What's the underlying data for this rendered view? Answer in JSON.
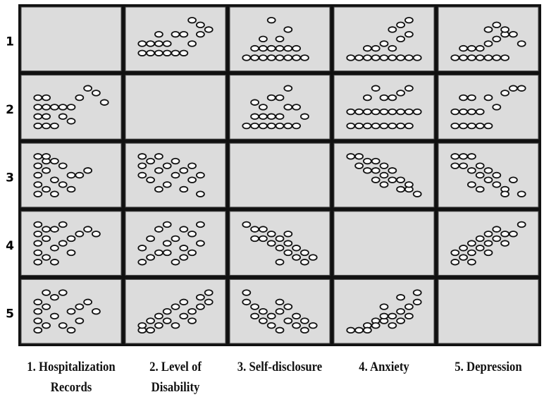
{
  "chart_data": {
    "type": "scatter_matrix",
    "variables": [
      "1. Hospitalization Records",
      "2. Level of Disability",
      "3. Self-disclosure",
      "4. Anxiety",
      "5. Depression"
    ],
    "row_labels": [
      "1",
      "2",
      "3",
      "4",
      "5"
    ],
    "xlim": [
      0,
      10
    ],
    "ylim": [
      0,
      10
    ],
    "panels": [
      [
        null,
        {
          "x": [
            1,
            2,
            3,
            4,
            5,
            1,
            2,
            3,
            4,
            6,
            7,
            8,
            5,
            6,
            3,
            8,
            9,
            7
          ],
          "y": [
            2,
            2,
            2,
            2,
            2,
            4,
            4,
            4,
            4,
            2,
            4,
            6,
            6,
            6,
            6,
            8,
            7,
            9
          ]
        },
        {
          "x": [
            1,
            2,
            3,
            4,
            5,
            6,
            7,
            8,
            2,
            3,
            4,
            5,
            6,
            7,
            3,
            5,
            6,
            4
          ],
          "y": [
            1,
            1,
            1,
            1,
            1,
            1,
            1,
            1,
            3,
            3,
            3,
            3,
            3,
            3,
            5,
            5,
            7,
            9
          ]
        },
        {
          "x": [
            1,
            2,
            3,
            4,
            5,
            6,
            7,
            8,
            9,
            3,
            4,
            5,
            6,
            7,
            8,
            6,
            7,
            8
          ],
          "y": [
            1,
            1,
            1,
            1,
            1,
            1,
            1,
            1,
            1,
            3,
            3,
            4,
            3,
            5,
            6,
            7,
            8,
            9
          ]
        },
        {
          "x": [
            1,
            2,
            3,
            4,
            5,
            6,
            7,
            2,
            3,
            4,
            5,
            6,
            7,
            8,
            5,
            6,
            7,
            9
          ],
          "y": [
            1,
            1,
            1,
            1,
            1,
            1,
            1,
            3,
            3,
            3,
            4,
            5,
            6,
            6,
            7,
            8,
            7,
            4
          ]
        }
      ],
      [
        {
          "x": [
            1,
            2,
            3,
            1,
            2,
            1,
            2,
            3,
            4,
            5,
            1,
            2,
            4,
            5,
            6,
            7,
            8,
            9
          ],
          "y": [
            1,
            1,
            1,
            3,
            3,
            5,
            5,
            5,
            5,
            5,
            7,
            7,
            3,
            2,
            7,
            9,
            8,
            6
          ]
        },
        null,
        {
          "x": [
            1,
            2,
            3,
            4,
            5,
            6,
            7,
            2,
            3,
            4,
            5,
            6,
            7,
            3,
            4,
            5,
            6,
            8,
            2
          ],
          "y": [
            1,
            1,
            1,
            1,
            1,
            1,
            1,
            3,
            3,
            3,
            3,
            5,
            5,
            5,
            7,
            7,
            9,
            3,
            6
          ]
        },
        {
          "x": [
            1,
            2,
            3,
            4,
            5,
            6,
            7,
            8,
            1,
            2,
            3,
            4,
            5,
            6,
            7,
            8,
            9,
            3,
            5,
            6,
            7,
            8,
            4
          ],
          "y": [
            1,
            1,
            1,
            1,
            1,
            1,
            1,
            1,
            4,
            4,
            4,
            4,
            4,
            4,
            4,
            4,
            4,
            7,
            7,
            7,
            8,
            9,
            9
          ]
        },
        {
          "x": [
            1,
            2,
            3,
            4,
            5,
            1,
            2,
            3,
            4,
            6,
            2,
            3,
            5,
            7,
            8,
            9
          ],
          "y": [
            1,
            1,
            1,
            1,
            1,
            4,
            4,
            4,
            4,
            5,
            7,
            7,
            7,
            8,
            9,
            9
          ]
        }
      ],
      [
        {
          "x": [
            1,
            1,
            1,
            1,
            1,
            2,
            2,
            2,
            3,
            3,
            4,
            4,
            5,
            6,
            7,
            2,
            3,
            5
          ],
          "y": [
            1,
            3,
            5,
            7,
            9,
            2,
            6,
            8,
            4,
            8,
            3,
            7,
            5,
            5,
            6,
            9,
            1,
            2
          ]
        },
        {
          "x": [
            1,
            1,
            1,
            2,
            2,
            3,
            3,
            4,
            4,
            5,
            5,
            6,
            6,
            7,
            7,
            8,
            8,
            3
          ],
          "y": [
            9,
            7,
            5,
            8,
            4,
            6,
            9,
            7,
            3,
            8,
            5,
            6,
            2,
            7,
            4,
            5,
            1,
            2
          ]
        },
        null,
        {
          "x": [
            1,
            2,
            3,
            4,
            5,
            2,
            3,
            4,
            5,
            6,
            7,
            4,
            5,
            6,
            7,
            8,
            9,
            8
          ],
          "y": [
            9,
            9,
            8,
            8,
            7,
            7,
            6,
            6,
            5,
            6,
            4,
            4,
            3,
            4,
            2,
            2,
            1,
            3
          ]
        },
        {
          "x": [
            1,
            2,
            3,
            1,
            2,
            3,
            4,
            5,
            4,
            5,
            6,
            3,
            4,
            6,
            7,
            8,
            9,
            7
          ],
          "y": [
            9,
            9,
            9,
            7,
            7,
            6,
            7,
            6,
            5,
            4,
            5,
            3,
            2,
            3,
            2,
            4,
            1,
            1
          ]
        }
      ],
      [
        {
          "x": [
            1,
            1,
            1,
            1,
            1,
            2,
            2,
            3,
            3,
            4,
            4,
            5,
            6,
            7,
            8,
            2,
            3,
            5
          ],
          "y": [
            1,
            3,
            5,
            7,
            9,
            2,
            6,
            4,
            8,
            5,
            9,
            6,
            7,
            8,
            7,
            8,
            1,
            3
          ]
        },
        {
          "x": [
            1,
            1,
            2,
            2,
            3,
            3,
            4,
            4,
            5,
            5,
            6,
            6,
            7,
            7,
            8,
            8,
            4,
            6
          ],
          "y": [
            1,
            4,
            2,
            6,
            3,
            8,
            5,
            9,
            1,
            6,
            4,
            8,
            3,
            7,
            5,
            9,
            3,
            2
          ]
        },
        {
          "x": [
            1,
            2,
            3,
            3,
            4,
            4,
            5,
            5,
            6,
            6,
            7,
            7,
            8,
            8,
            9,
            5,
            2,
            6
          ],
          "y": [
            9,
            8,
            8,
            6,
            7,
            5,
            6,
            4,
            5,
            3,
            4,
            2,
            3,
            1,
            2,
            1,
            6,
            7
          ]
        },
        null,
        {
          "x": [
            1,
            1,
            2,
            2,
            3,
            3,
            4,
            4,
            5,
            5,
            6,
            6,
            7,
            8,
            9,
            3,
            5,
            7
          ],
          "y": [
            1,
            3,
            2,
            4,
            3,
            5,
            4,
            6,
            5,
            7,
            6,
            8,
            7,
            7,
            9,
            1,
            3,
            5
          ]
        }
      ],
      [
        {
          "x": [
            1,
            1,
            1,
            1,
            2,
            2,
            3,
            3,
            4,
            5,
            6,
            7,
            8,
            2,
            4,
            6,
            5
          ],
          "y": [
            1,
            3,
            5,
            7,
            2,
            6,
            4,
            8,
            2,
            5,
            6,
            7,
            5,
            9,
            9,
            3,
            1
          ]
        },
        {
          "x": [
            1,
            1,
            2,
            2,
            3,
            3,
            4,
            4,
            5,
            5,
            6,
            6,
            7,
            7,
            8,
            8,
            9,
            9
          ],
          "y": [
            1,
            2,
            1,
            3,
            2,
            4,
            3,
            5,
            2,
            6,
            4,
            7,
            5,
            3,
            6,
            8,
            7,
            9
          ]
        },
        {
          "x": [
            1,
            1,
            2,
            3,
            3,
            4,
            4,
            5,
            5,
            6,
            6,
            7,
            7,
            8,
            8,
            9,
            2,
            5
          ],
          "y": [
            9,
            7,
            6,
            5,
            3,
            4,
            2,
            5,
            1,
            3,
            6,
            2,
            4,
            1,
            3,
            2,
            4,
            7
          ]
        },
        {
          "x": [
            1,
            2,
            3,
            3,
            4,
            4,
            5,
            5,
            6,
            6,
            7,
            7,
            8,
            8,
            9,
            9,
            5,
            7
          ],
          "y": [
            1,
            1,
            2,
            1,
            3,
            2,
            3,
            4,
            4,
            2,
            5,
            3,
            6,
            4,
            7,
            9,
            6,
            8
          ]
        },
        null
      ]
    ]
  }
}
